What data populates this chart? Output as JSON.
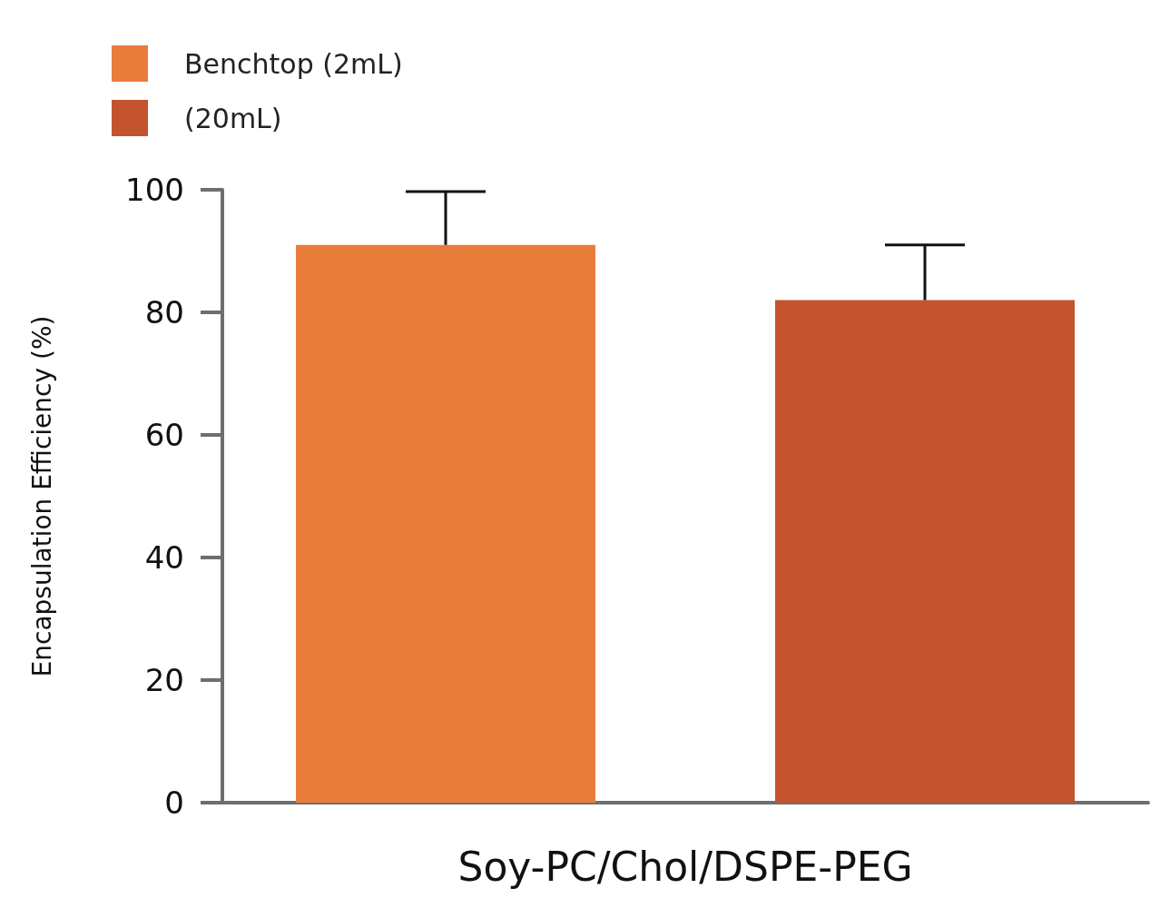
{
  "chart_data": {
    "type": "bar",
    "ylabel": "Encapsulation Efficiency (%)",
    "categories": [
      "Soy-PC/Chol/DSPE-PEG"
    ],
    "series": [
      {
        "name": "Benchtop (2mL)",
        "color": "#e97c3b",
        "values": [
          91
        ],
        "errors": [
          [
            91,
            99.7
          ]
        ]
      },
      {
        "name": "(20mL)",
        "color": "#c3542d",
        "values": [
          82
        ],
        "errors": [
          [
            82,
            91
          ]
        ]
      }
    ],
    "ylim": [
      0,
      100
    ],
    "yticks": [
      0,
      20,
      40,
      60,
      80,
      100
    ],
    "grid": false,
    "legend": "top left"
  }
}
